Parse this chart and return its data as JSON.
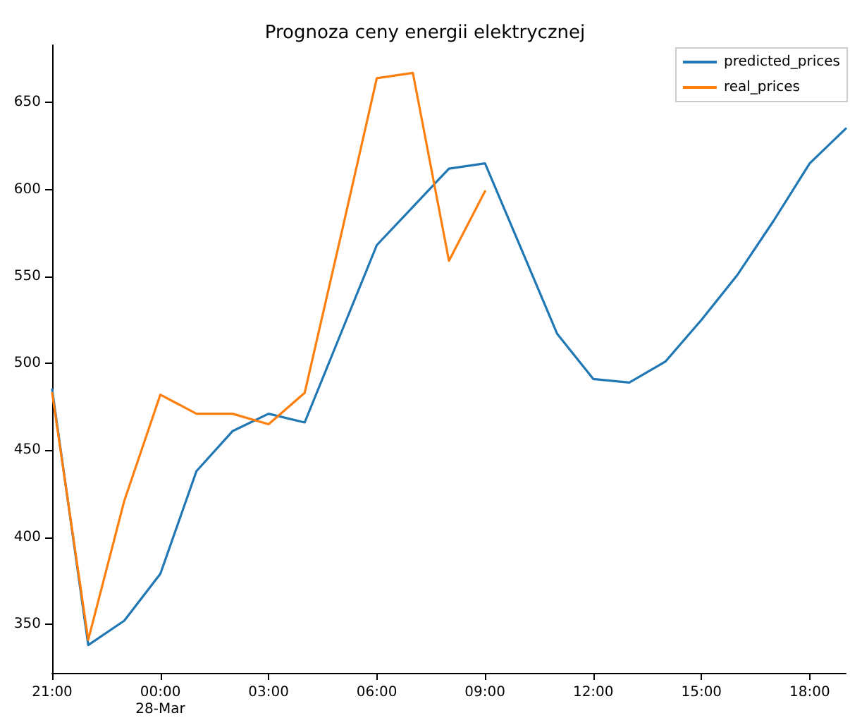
{
  "chart_data": {
    "type": "line",
    "title": "Prognoza ceny energii elektrycznej",
    "categories": [
      "21:00",
      null,
      null,
      "00:00\n28-Mar",
      null,
      null,
      "03:00",
      null,
      null,
      "06:00",
      null,
      null,
      "09:00",
      null,
      null,
      "12:00",
      null,
      null,
      "15:00",
      null,
      null,
      "18:00",
      null
    ],
    "series": [
      {
        "name": "predicted_prices",
        "color": "#1f77b4",
        "values": [
          485,
          338,
          352,
          379,
          438,
          461,
          471,
          466,
          517,
          568,
          590,
          612,
          615,
          566,
          517,
          491,
          489,
          501,
          525,
          551,
          582,
          615,
          635
        ]
      },
      {
        "name": "real_prices",
        "color": "#ff7f0e",
        "values": [
          483,
          341,
          421,
          482,
          471,
          471,
          465,
          483,
          573,
          664,
          667,
          559,
          599,
          null,
          null,
          null,
          null,
          null,
          null,
          null,
          null,
          null,
          null
        ]
      }
    ],
    "ylim": [
      322,
      683
    ],
    "yticks": [
      350,
      400,
      450,
      500,
      550,
      600,
      650
    ],
    "grid": false,
    "legend": "top right",
    "marker": "none",
    "line_style": "solid"
  }
}
